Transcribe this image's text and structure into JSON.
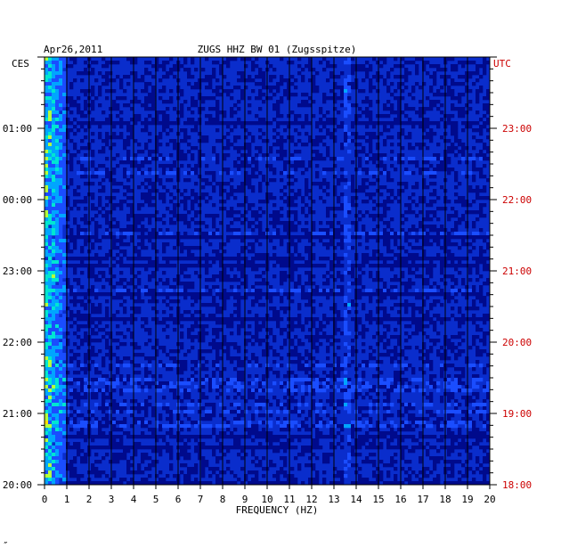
{
  "header": {
    "date": "Apr26,2011",
    "title": "ZUGS HHZ BW 01 (Zugsspitze)",
    "left_tz": "CES",
    "right_tz": "UTC"
  },
  "footer_mark": "″",
  "colors": {
    "background": "#0a2dcc",
    "grid": "#000000",
    "right_labels": "#cc0000",
    "colormap": [
      "#000a8c",
      "#0022cc",
      "#1a4dff",
      "#00a5ff",
      "#00e6d2",
      "#b4ff3c",
      "#ffdc00",
      "#ff5000"
    ]
  },
  "chart_data": {
    "type": "heatmap",
    "title": "ZUGS HHZ BW 01 (Zugsspitze)",
    "xlabel": "FREQUENCY (HZ)",
    "x_ticks": [
      "0",
      "1",
      "2",
      "3",
      "4",
      "5",
      "6",
      "7",
      "8",
      "9",
      "10",
      "11",
      "12",
      "13",
      "14",
      "15",
      "16",
      "17",
      "18",
      "19",
      "20"
    ],
    "xlim": [
      0,
      20
    ],
    "y_left_labels": [
      "20:00",
      "21:00",
      "22:00",
      "23:00",
      "00:00",
      "01:00"
    ],
    "y_right_labels": [
      "18:00",
      "19:00",
      "20:00",
      "21:00",
      "22:00",
      "23:00"
    ],
    "y_span_hours": 6,
    "grid": true,
    "features": [
      {
        "note": "strong low-frequency energy",
        "freq_range_hz": [
          0,
          1
        ]
      },
      {
        "note": "narrow spectral line",
        "freq_hz": 13.6,
        "time_range_utc": [
          "19:50",
          "21:00"
        ]
      }
    ]
  }
}
